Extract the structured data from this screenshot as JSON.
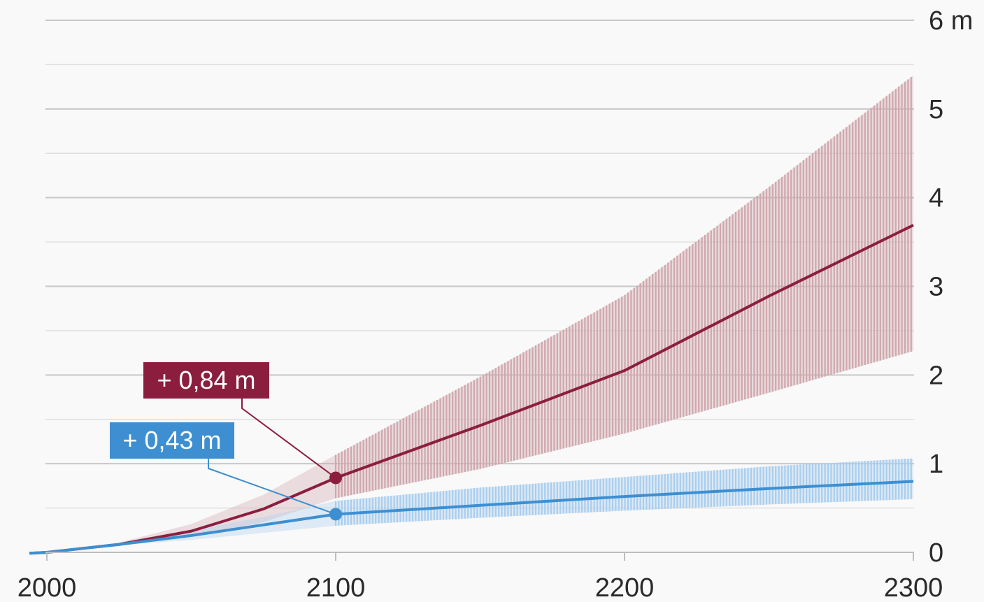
{
  "chart_data": {
    "type": "line",
    "x_ticks": [
      2000,
      2100,
      2200,
      2300
    ],
    "x_tick_labels": [
      "2000",
      "2100",
      "2200",
      "2300"
    ],
    "y_ticks": [
      0,
      1,
      2,
      3,
      4,
      5,
      6
    ],
    "y_tick_labels": [
      "0",
      "1",
      "2",
      "3",
      "4",
      "5",
      "6 m"
    ],
    "xlim": [
      2000,
      2300
    ],
    "ylim": [
      0,
      6
    ],
    "grid": true,
    "series": [
      {
        "color": "#8b1e3f",
        "band_color": "#cfa7ad",
        "x": [
          1994,
          2000,
          2025,
          2050,
          2075,
          2100,
          2150,
          2200,
          2250,
          2300
        ],
        "y": [
          -0.01,
          0.0,
          0.09,
          0.24,
          0.49,
          0.84,
          1.43,
          2.05,
          2.89,
          3.69
        ],
        "band_upper": [
          -0.01,
          0.0,
          0.11,
          0.32,
          0.65,
          1.1,
          1.98,
          2.9,
          4.12,
          5.38
        ],
        "band_lower": [
          -0.01,
          0.0,
          0.07,
          0.18,
          0.34,
          0.61,
          0.94,
          1.34,
          1.8,
          2.27
        ],
        "callout": {
          "label": "+ 0,84 m",
          "x": 2100,
          "y": 0.84,
          "color": "#8b1e3f"
        }
      },
      {
        "color": "#3d8fd1",
        "band_color": "#a9cdee",
        "x": [
          1994,
          2000,
          2025,
          2050,
          2075,
          2100,
          2150,
          2200,
          2250,
          2300
        ],
        "y": [
          -0.01,
          0.0,
          0.09,
          0.19,
          0.31,
          0.43,
          0.53,
          0.63,
          0.72,
          0.8
        ],
        "band_upper": [
          -0.01,
          0.0,
          0.1,
          0.25,
          0.4,
          0.58,
          0.73,
          0.85,
          0.97,
          1.06
        ],
        "band_lower": [
          -0.01,
          0.0,
          0.08,
          0.14,
          0.22,
          0.3,
          0.39,
          0.47,
          0.54,
          0.6
        ],
        "callout": {
          "label": "+ 0,43 m",
          "x": 2100,
          "y": 0.43,
          "color": "#3d8fd1"
        }
      }
    ]
  },
  "colors": {
    "background": "#f9f9f9",
    "grid_major": "#c8c8c8",
    "grid_minor": "#e0e0e0",
    "axis": "#bdbdbd",
    "text": "#2a2a2a"
  }
}
